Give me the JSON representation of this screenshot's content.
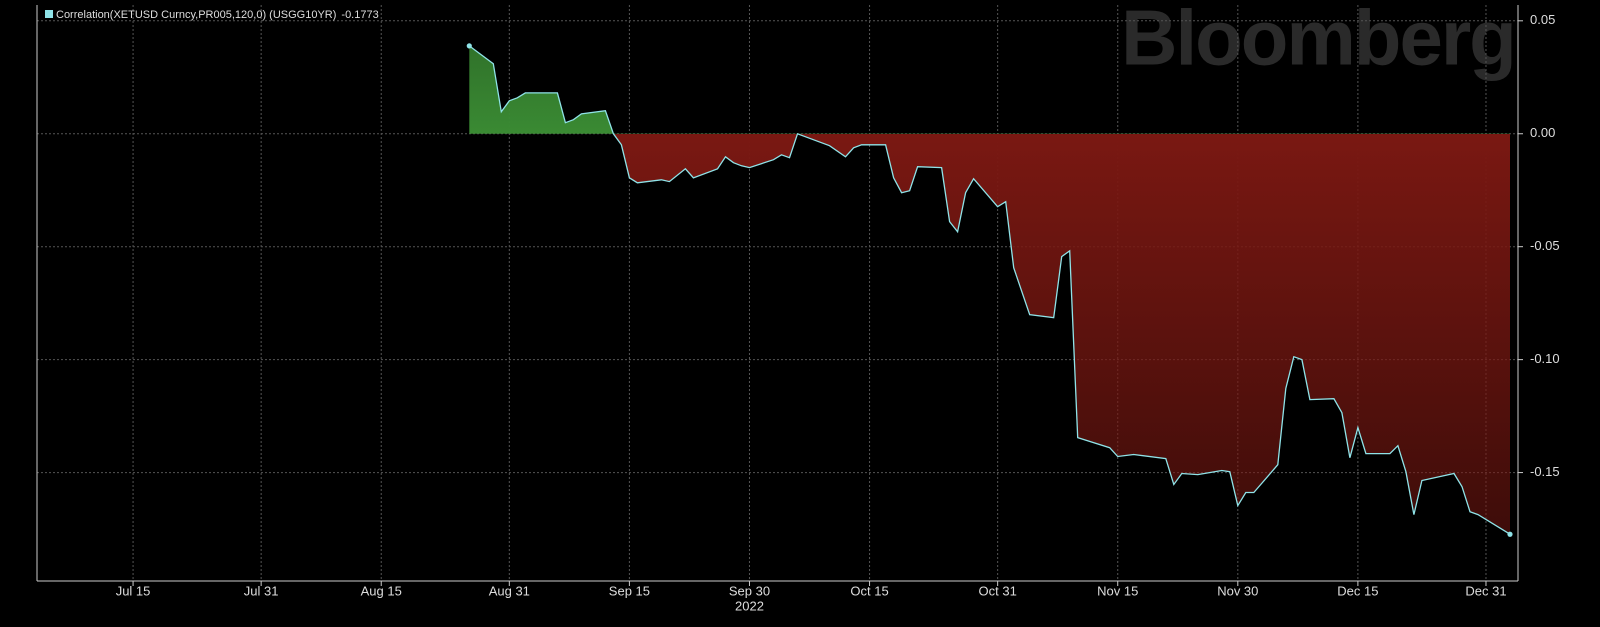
{
  "chart_data": {
    "type": "area",
    "watermark": "Bloomberg",
    "xlabel": "2022",
    "x": [
      "2022-08-26",
      "2022-08-29",
      "2022-08-30",
      "2022-08-31",
      "2022-09-01",
      "2022-09-02",
      "2022-09-06",
      "2022-09-07",
      "2022-09-08",
      "2022-09-09",
      "2022-09-12",
      "2022-09-13",
      "2022-09-14",
      "2022-09-15",
      "2022-09-16",
      "2022-09-19",
      "2022-09-20",
      "2022-09-22",
      "2022-09-23",
      "2022-09-26",
      "2022-09-27",
      "2022-09-28",
      "2022-09-29",
      "2022-09-30",
      "2022-10-03",
      "2022-10-04",
      "2022-10-05",
      "2022-10-06",
      "2022-10-10",
      "2022-10-12",
      "2022-10-13",
      "2022-10-14",
      "2022-10-17",
      "2022-10-18",
      "2022-10-19",
      "2022-10-20",
      "2022-10-21",
      "2022-10-24",
      "2022-10-25",
      "2022-10-26",
      "2022-10-27",
      "2022-10-28",
      "2022-10-31",
      "2022-11-01",
      "2022-11-02",
      "2022-11-04",
      "2022-11-07",
      "2022-11-08",
      "2022-11-09",
      "2022-11-10",
      "2022-11-14",
      "2022-11-15",
      "2022-11-17",
      "2022-11-21",
      "2022-11-22",
      "2022-11-23",
      "2022-11-25",
      "2022-11-28",
      "2022-11-29",
      "2022-11-30",
      "2022-12-01",
      "2022-12-02",
      "2022-12-05",
      "2022-12-06",
      "2022-12-07",
      "2022-12-08",
      "2022-12-09",
      "2022-12-12",
      "2022-12-13",
      "2022-12-14",
      "2022-12-15",
      "2022-12-16",
      "2022-12-19",
      "2022-12-20",
      "2022-12-21",
      "2022-12-22",
      "2022-12-23",
      "2022-12-27",
      "2022-12-28",
      "2022-12-29",
      "2022-12-30",
      "2023-01-03"
    ],
    "series": [
      {
        "name": "Correlation(XETUSD Curncy,PR005,120,0) (USGG10YR)",
        "color": "#8fe3e8",
        "positive_color": "#3a8a33",
        "negative_color": "#7a1812",
        "values": [
          0.0389,
          0.031,
          0.0097,
          0.0146,
          0.0159,
          0.0181,
          0.0181,
          0.0049,
          0.0062,
          0.0088,
          0.0102,
          0,
          -0.0049,
          -0.0195,
          -0.0217,
          -0.0204,
          -0.0212,
          -0.0155,
          -0.0195,
          -0.0155,
          -0.0102,
          -0.0128,
          -0.0142,
          -0.015,
          -0.0115,
          -0.0093,
          -0.0106,
          0,
          -0.0053,
          -0.0102,
          -0.0062,
          -0.0049,
          -0.0049,
          -0.0195,
          -0.0261,
          -0.0252,
          -0.0146,
          -0.015,
          -0.0389,
          -0.0434,
          -0.0261,
          -0.0199,
          -0.0323,
          -0.0301,
          -0.0593,
          -0.0801,
          -0.0814,
          -0.0544,
          -0.0518,
          -0.1345,
          -0.139,
          -0.1429,
          -0.142,
          -0.1438,
          -0.1553,
          -0.1504,
          -0.1509,
          -0.1491,
          -0.1496,
          -0.1646,
          -0.1588,
          -0.1588,
          -0.1465,
          -0.1128,
          -0.0987,
          -0.1,
          -0.1177,
          -0.1173,
          -0.1235,
          -0.1434,
          -0.1301,
          -0.1416,
          -0.1416,
          -0.1381,
          -0.1496,
          -0.1686,
          -0.1535,
          -0.1504,
          -0.1562,
          -0.1673,
          -0.1686,
          -0.1773
        ]
      }
    ],
    "xlim": [
      "2022-07-03",
      "2023-01-04"
    ],
    "xticks": [
      {
        "value": "2022-07-15",
        "label": "Jul 15"
      },
      {
        "value": "2022-07-31",
        "label": "Jul 31"
      },
      {
        "value": "2022-08-15",
        "label": "Aug 15"
      },
      {
        "value": "2022-08-31",
        "label": "Aug 31"
      },
      {
        "value": "2022-09-15",
        "label": "Sep 15"
      },
      {
        "value": "2022-09-30",
        "label": "Sep 30"
      },
      {
        "value": "2022-10-15",
        "label": "Oct 15"
      },
      {
        "value": "2022-10-31",
        "label": "Oct 31"
      },
      {
        "value": "2022-11-15",
        "label": "Nov 15"
      },
      {
        "value": "2022-11-30",
        "label": "Nov 30"
      },
      {
        "value": "2022-12-15",
        "label": "Dec 15"
      },
      {
        "value": "2022-12-31",
        "label": "Dec 31"
      }
    ],
    "ylim": [
      -0.198,
      0.057
    ],
    "yticks": [
      0.05,
      {
        "value": 0,
        "label": "0.00"
      },
      -0.05,
      {
        "value": -0.1,
        "label": "-0.10"
      },
      -0.15
    ],
    "grid": true
  }
}
